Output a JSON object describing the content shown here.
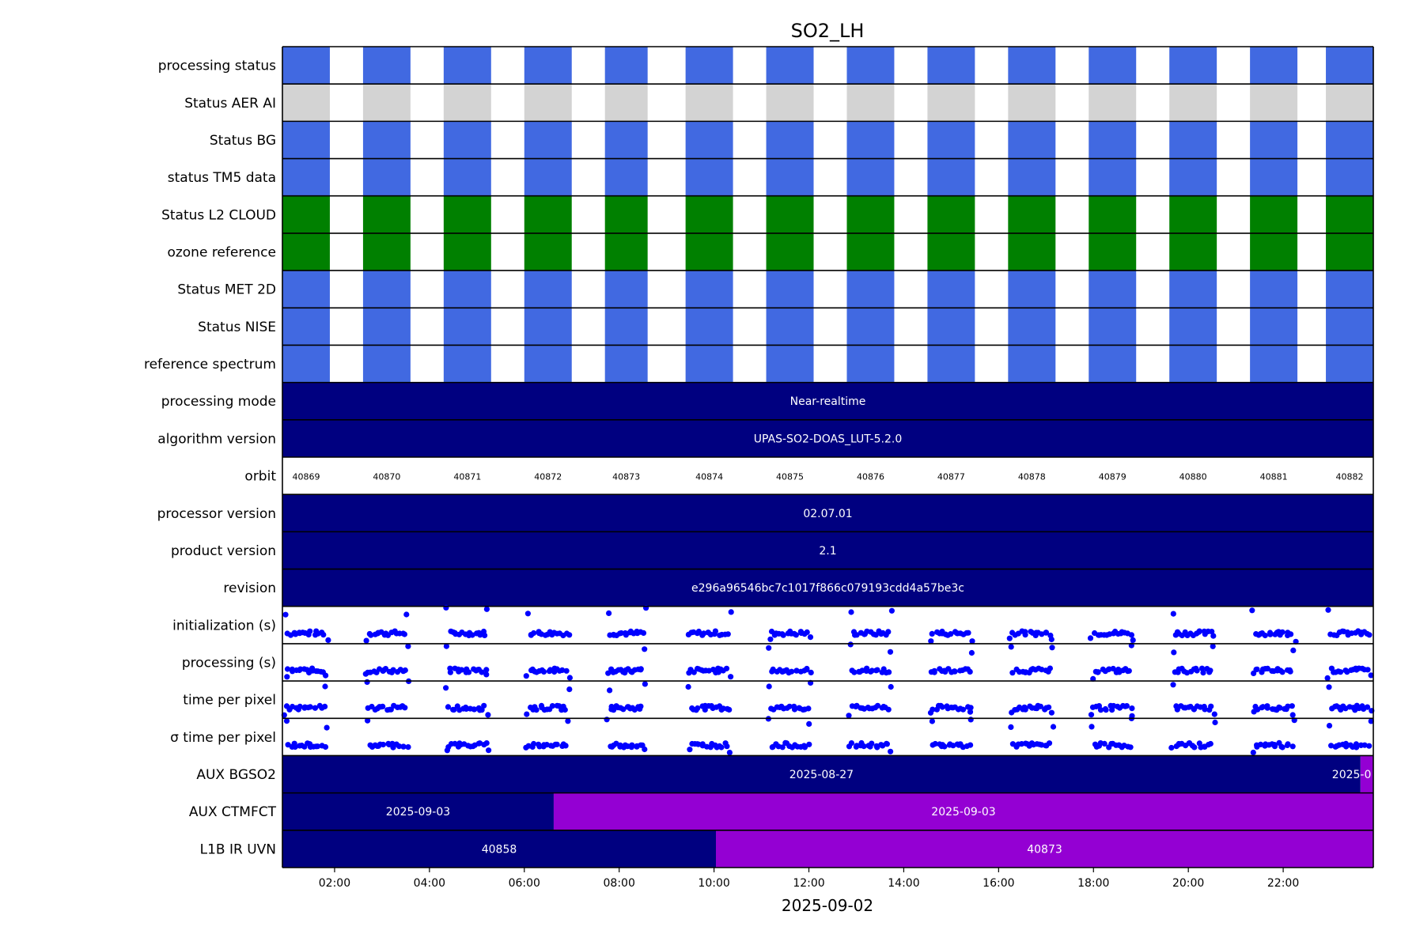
{
  "chart_data": {
    "type": "timeline",
    "title": "SO2_LH",
    "xlabel": "2025-09-02",
    "x_ticks": [
      "02:00",
      "04:00",
      "06:00",
      "08:00",
      "10:00",
      "12:00",
      "14:00",
      "16:00",
      "18:00",
      "20:00",
      "22:00"
    ],
    "xlim_hours": [
      0.9,
      23.9
    ],
    "colors": {
      "blue": "#4169e1",
      "grey": "#d3d3d3",
      "green": "#008000",
      "navy": "#000080",
      "purple": "#9400d3",
      "dot": "#0000ff"
    },
    "orbit_segments": [
      {
        "start": 0.9,
        "end": 1.9
      },
      {
        "start": 2.6,
        "end": 3.6
      },
      {
        "start": 4.3,
        "end": 5.3
      },
      {
        "start": 6.0,
        "end": 7.0
      },
      {
        "start": 7.7,
        "end": 8.6
      },
      {
        "start": 9.4,
        "end": 10.4
      },
      {
        "start": 11.1,
        "end": 12.1
      },
      {
        "start": 12.8,
        "end": 13.8
      },
      {
        "start": 14.5,
        "end": 15.5
      },
      {
        "start": 16.2,
        "end": 17.2
      },
      {
        "start": 17.9,
        "end": 18.9
      },
      {
        "start": 19.6,
        "end": 20.6
      },
      {
        "start": 21.3,
        "end": 22.3
      },
      {
        "start": 22.9,
        "end": 23.9
      }
    ],
    "orbits": [
      "40869",
      "40870",
      "40871",
      "40872",
      "40873",
      "40874",
      "40875",
      "40876",
      "40877",
      "40878",
      "40879",
      "40880",
      "40881",
      "40882"
    ],
    "rows": [
      {
        "label": "processing status",
        "kind": "status",
        "color": "blue"
      },
      {
        "label": "Status AER AI",
        "kind": "status",
        "color": "grey"
      },
      {
        "label": "Status BG",
        "kind": "status",
        "color": "blue"
      },
      {
        "label": "status TM5 data",
        "kind": "status",
        "color": "blue"
      },
      {
        "label": "Status L2  CLOUD",
        "kind": "status",
        "color": "green"
      },
      {
        "label": "ozone reference",
        "kind": "status",
        "color": "green"
      },
      {
        "label": "Status MET 2D",
        "kind": "status",
        "color": "blue"
      },
      {
        "label": "Status NISE",
        "kind": "status",
        "color": "blue"
      },
      {
        "label": "reference spectrum",
        "kind": "status",
        "color": "blue"
      },
      {
        "label": "processing mode",
        "kind": "band",
        "segments": [
          {
            "start": 0.9,
            "end": 23.9,
            "color": "navy",
            "text": "Near-realtime"
          }
        ]
      },
      {
        "label": "algorithm version",
        "kind": "band",
        "segments": [
          {
            "start": 0.9,
            "end": 23.9,
            "color": "navy",
            "text": "UPAS-SO2-DOAS_LUT-5.2.0"
          }
        ]
      },
      {
        "label": "orbit",
        "kind": "orbit"
      },
      {
        "label": "processor version",
        "kind": "band",
        "segments": [
          {
            "start": 0.9,
            "end": 23.9,
            "color": "navy",
            "text": "02.07.01"
          }
        ]
      },
      {
        "label": "product version",
        "kind": "band",
        "segments": [
          {
            "start": 0.9,
            "end": 23.9,
            "color": "navy",
            "text": "2.1"
          }
        ]
      },
      {
        "label": "revision",
        "kind": "band",
        "segments": [
          {
            "start": 0.9,
            "end": 23.9,
            "color": "navy",
            "text": "e296a96546bc7c1017f866c079193cdd4a57be3c"
          }
        ]
      },
      {
        "label": "initialization (s)",
        "kind": "scatter"
      },
      {
        "label": "processing (s)",
        "kind": "scatter"
      },
      {
        "label": "time per pixel",
        "kind": "scatter"
      },
      {
        "label": "σ time per pixel",
        "kind": "scatter"
      },
      {
        "label": "AUX BGSO2",
        "kind": "band",
        "segments": [
          {
            "start": 0.9,
            "end": 23.63,
            "color": "navy",
            "text": "2025-08-27"
          },
          {
            "start": 23.63,
            "end": 23.9,
            "color": "purple",
            "text": "2025-0"
          }
        ]
      },
      {
        "label": "AUX CTMFCT",
        "kind": "band",
        "segments": [
          {
            "start": 0.9,
            "end": 6.62,
            "color": "navy",
            "text": "2025-09-03"
          },
          {
            "start": 6.62,
            "end": 23.9,
            "color": "purple",
            "text": "2025-09-03"
          }
        ]
      },
      {
        "label": "L1B IR UVN",
        "kind": "band",
        "segments": [
          {
            "start": 0.9,
            "end": 10.04,
            "color": "navy",
            "text": "40858"
          },
          {
            "start": 10.04,
            "end": 23.9,
            "color": "purple",
            "text": "40873"
          }
        ]
      }
    ]
  }
}
